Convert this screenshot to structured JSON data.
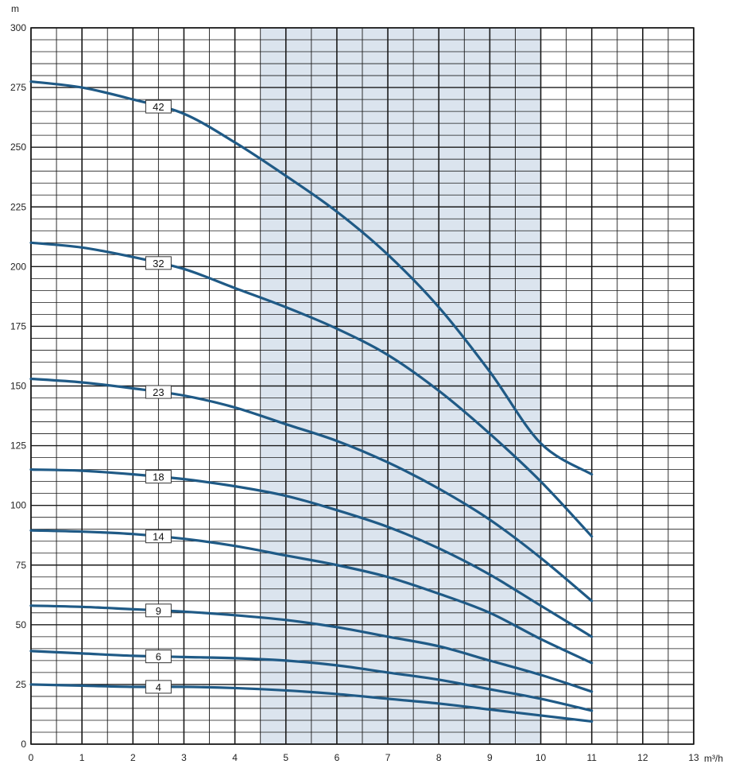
{
  "chart_data": {
    "type": "line",
    "y_unit_label": "m",
    "x_unit_label": "m³/h",
    "xlim": [
      0,
      13
    ],
    "ylim": [
      0,
      300
    ],
    "x_ticks": [
      0,
      1,
      2,
      3,
      4,
      5,
      6,
      7,
      8,
      9,
      10,
      11,
      12,
      13
    ],
    "y_ticks": [
      0,
      25,
      50,
      75,
      100,
      125,
      150,
      175,
      200,
      225,
      250,
      275,
      300
    ],
    "grid": true,
    "highlight_band_x": [
      4.5,
      10
    ],
    "colors": {
      "curve": "#1f5a86",
      "band": "#dbe4ee",
      "grid": "#1a1a1a"
    },
    "series": [
      {
        "name": "42",
        "label_x": 2.5,
        "x": [
          0,
          1,
          2,
          3,
          4,
          5,
          6,
          7,
          8,
          9,
          10,
          11
        ],
        "y": [
          277.5,
          275,
          270,
          264,
          252,
          238,
          223,
          205,
          183,
          156,
          126,
          113
        ]
      },
      {
        "name": "32",
        "label_x": 2.5,
        "x": [
          0,
          1,
          2,
          3,
          4,
          5,
          6,
          7,
          8,
          9,
          10,
          11
        ],
        "y": [
          210,
          208,
          204,
          199,
          191,
          183,
          174,
          163,
          148,
          130,
          110,
          87
        ]
      },
      {
        "name": "23",
        "label_x": 2.5,
        "x": [
          0,
          1,
          2,
          3,
          4,
          5,
          6,
          7,
          8,
          9,
          10,
          11
        ],
        "y": [
          153,
          151.5,
          149,
          146,
          141,
          134,
          127,
          118,
          107,
          94,
          78,
          60
        ]
      },
      {
        "name": "18",
        "label_x": 2.5,
        "x": [
          0,
          1,
          2,
          3,
          4,
          5,
          6,
          7,
          8,
          9,
          10,
          11
        ],
        "y": [
          115,
          114.5,
          113,
          111,
          108,
          104,
          98,
          91,
          82,
          71,
          58,
          45
        ]
      },
      {
        "name": "14",
        "label_x": 2.5,
        "x": [
          0,
          1,
          2,
          3,
          4,
          5,
          6,
          7,
          8,
          9,
          10,
          11
        ],
        "y": [
          89.5,
          89,
          88,
          86,
          83,
          79,
          75,
          70,
          63,
          55,
          44,
          34
        ]
      },
      {
        "name": "9",
        "label_x": 2.5,
        "x": [
          0,
          1,
          2,
          3,
          4,
          5,
          6,
          7,
          8,
          9,
          10,
          11
        ],
        "y": [
          58,
          57.5,
          56.5,
          55.5,
          54,
          52,
          49,
          45,
          41,
          35,
          29,
          22
        ]
      },
      {
        "name": "6",
        "label_x": 2.5,
        "x": [
          0,
          1,
          2,
          3,
          4,
          5,
          6,
          7,
          8,
          9,
          10,
          11
        ],
        "y": [
          39,
          38,
          37,
          36.5,
          36,
          35,
          33,
          30,
          27,
          23,
          19,
          14
        ]
      },
      {
        "name": "4",
        "label_x": 2.5,
        "x": [
          0,
          1,
          2,
          3,
          4,
          5,
          6,
          7,
          8,
          9,
          10,
          11
        ],
        "y": [
          25,
          24.5,
          24,
          24,
          23.5,
          22.5,
          21,
          19,
          17,
          14.5,
          12,
          9.5
        ]
      }
    ]
  }
}
